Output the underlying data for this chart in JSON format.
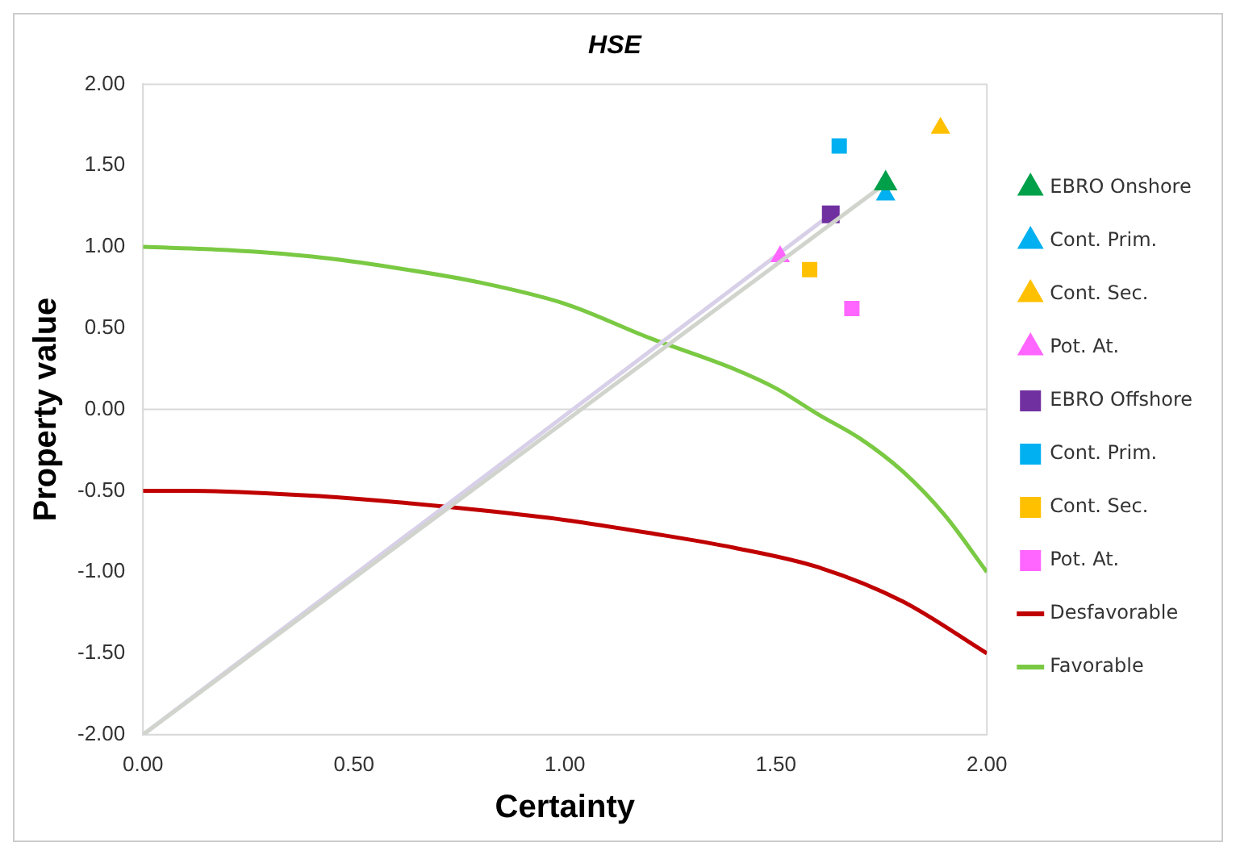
{
  "chart_data": {
    "type": "line",
    "title": "HSE",
    "xlabel": "Certainty",
    "ylabel": "Property value",
    "xlim": [
      0,
      2
    ],
    "xticks": [
      {
        "value": 0,
        "label": "0.00"
      },
      {
        "value": 0.5,
        "label": "0.50"
      },
      {
        "value": 1,
        "label": "1.00"
      },
      {
        "value": 1.5,
        "label": "1.50"
      },
      {
        "value": 2,
        "label": "2.00"
      }
    ],
    "ylim": [
      -2,
      2
    ],
    "yticks": [
      {
        "value": -2,
        "label": "-2.00"
      },
      {
        "value": -1.5,
        "label": "-1.50"
      },
      {
        "value": -1,
        "label": "-1.00"
      },
      {
        "value": -0.5,
        "label": "-0.50"
      },
      {
        "value": 0,
        "label": "0.00"
      },
      {
        "value": 0.5,
        "label": "0.50"
      },
      {
        "value": 1,
        "label": "1.00"
      },
      {
        "value": 1.5,
        "label": "1.50"
      },
      {
        "value": 2,
        "label": "2.00"
      }
    ],
    "grid": false,
    "legend": "right",
    "line_style": "solid",
    "ref_lines": [
      {
        "axis": "y",
        "value": 0,
        "color": "#d9d9d9"
      }
    ],
    "series": [
      {
        "name": "EBRO Onshore",
        "type": "line",
        "color": "#d0d4cc",
        "colors": [
          null,
          "#00a04a"
        ],
        "marker": "triangle",
        "x": [
          0,
          1.76
        ],
        "values": [
          -2,
          1.39
        ]
      },
      {
        "name": "Cont. Prim.",
        "type": "scatter",
        "color": "#00b0f0",
        "marker": "triangle",
        "x": [
          1.76
        ],
        "values": [
          1.32
        ]
      },
      {
        "name": "Cont. Sec.",
        "type": "scatter",
        "color": "#ffc000",
        "marker": "triangle",
        "x": [
          1.89
        ],
        "values": [
          1.73
        ]
      },
      {
        "name": "Pot. At.",
        "type": "scatter",
        "color": "#ff66ff",
        "marker": "triangle",
        "x": [
          1.51
        ],
        "values": [
          0.94
        ]
      },
      {
        "name": "EBRO Offshore",
        "type": "line",
        "color": "#d8d0e8",
        "colors": [
          null,
          "#7030a0"
        ],
        "marker": "square",
        "x": [
          0,
          1.63
        ],
        "values": [
          -2,
          1.2
        ]
      },
      {
        "name": "Cont. Prim.",
        "type": "scatter",
        "color": "#00b0f0",
        "marker": "square",
        "x": [
          1.65
        ],
        "values": [
          1.62
        ]
      },
      {
        "name": "Cont. Sec.",
        "type": "scatter",
        "color": "#ffc000",
        "marker": "square",
        "x": [
          1.58
        ],
        "values": [
          0.86
        ]
      },
      {
        "name": "Pot. At.",
        "type": "scatter",
        "color": "#ff66ff",
        "marker": "square",
        "x": [
          1.68
        ],
        "values": [
          0.62
        ]
      },
      {
        "name": "Desfavorable",
        "type": "line",
        "color": "#c00000",
        "marker": "none",
        "x": [
          0,
          0.1,
          0.4,
          0.6,
          0.8,
          1.0,
          1.2,
          1.4,
          1.6,
          1.8,
          2.0
        ],
        "values": [
          -0.5,
          -0.5,
          -0.53,
          -0.57,
          -0.62,
          -0.68,
          -0.76,
          -0.85,
          -0.97,
          -1.18,
          -1.5
        ]
      },
      {
        "name": "Favorable",
        "type": "line",
        "color": "#7ac943",
        "marker": "none",
        "x": [
          0,
          0.2,
          0.4,
          0.6,
          0.8,
          1.0,
          1.2,
          1.4,
          1.5,
          1.6,
          1.7,
          1.8,
          1.9,
          2.0
        ],
        "values": [
          1,
          0.98,
          0.94,
          0.87,
          0.78,
          0.65,
          0.44,
          0.25,
          0.13,
          -0.03,
          -0.18,
          -0.38,
          -0.65,
          -1
        ]
      }
    ]
  }
}
